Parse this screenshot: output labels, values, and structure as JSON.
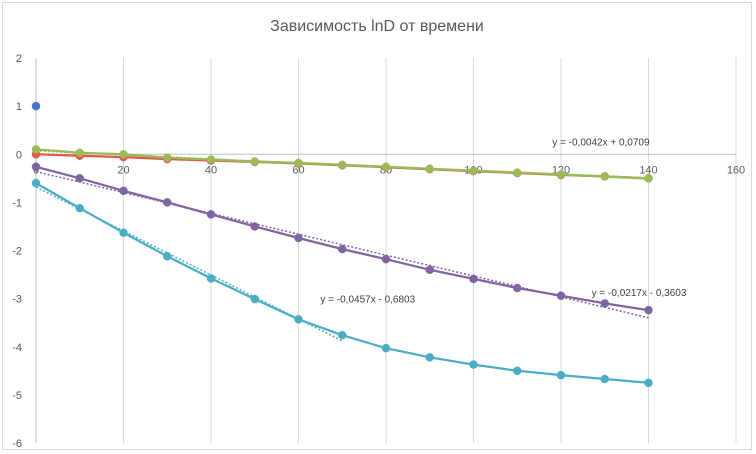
{
  "chart_data": {
    "type": "line",
    "title": "Зависимость lnD от времени",
    "xlabel": "",
    "ylabel": "",
    "xlim": [
      0,
      160
    ],
    "ylim": [
      -6,
      2
    ],
    "x_ticks": [
      0,
      20,
      40,
      60,
      80,
      100,
      120,
      140,
      160
    ],
    "y_ticks": [
      2,
      1,
      0,
      -1,
      -2,
      -3,
      -4,
      -5,
      -6
    ],
    "grid": "vertical",
    "x": [
      0,
      10,
      20,
      30,
      40,
      50,
      60,
      70,
      80,
      90,
      100,
      110,
      120,
      130,
      140
    ],
    "series": [
      {
        "color": "#4472c4",
        "points": [
          [
            0,
            1
          ]
        ]
      },
      {
        "color": "#e05a47",
        "values": [
          0.0,
          -0.03,
          -0.06,
          -0.1,
          -0.13,
          -0.16,
          -0.19,
          -0.23,
          -0.27,
          -0.31,
          -0.35,
          -0.39,
          -0.43,
          -0.46,
          -0.5
        ]
      },
      {
        "color": "#9bbb59",
        "values": [
          0.1,
          0.03,
          0.0,
          -0.07,
          -0.11,
          -0.15,
          -0.18,
          -0.22,
          -0.26,
          -0.3,
          -0.34,
          -0.38,
          -0.42,
          -0.46,
          -0.5
        ]
      },
      {
        "color": "#8064a2",
        "values": [
          -0.26,
          -0.5,
          -0.76,
          -1.0,
          -1.25,
          -1.5,
          -1.74,
          -1.97,
          -2.18,
          -2.4,
          -2.59,
          -2.78,
          -2.94,
          -3.1,
          -3.24
        ]
      },
      {
        "color": "#4bacc6",
        "values": [
          -0.6,
          -1.12,
          -1.63,
          -2.12,
          -2.58,
          -3.01,
          -3.43,
          -3.76,
          -4.03,
          -4.22,
          -4.37,
          -4.5,
          -4.59,
          -4.67,
          -4.75
        ]
      }
    ],
    "trendlines": [
      {
        "color": "#9bbb59",
        "slope": -0.0042,
        "intercept": 0.0709,
        "x_range": [
          0,
          140
        ],
        "label": "y = -0,0042x + 0,0709",
        "label_at": [
          118,
          0.18
        ]
      },
      {
        "color": "#8064a2",
        "slope": -0.0217,
        "intercept": -0.3603,
        "x_range": [
          0,
          140
        ],
        "label": "y = -0,0217x - 0,3603",
        "label_at": [
          127,
          -2.95
        ]
      },
      {
        "color": "#4bacc6",
        "slope": -0.0457,
        "intercept": -0.6803,
        "x_range": [
          0,
          70
        ],
        "label": "y = -0,0457x - 0,6803",
        "label_at": [
          65,
          -3.08
        ]
      }
    ]
  }
}
